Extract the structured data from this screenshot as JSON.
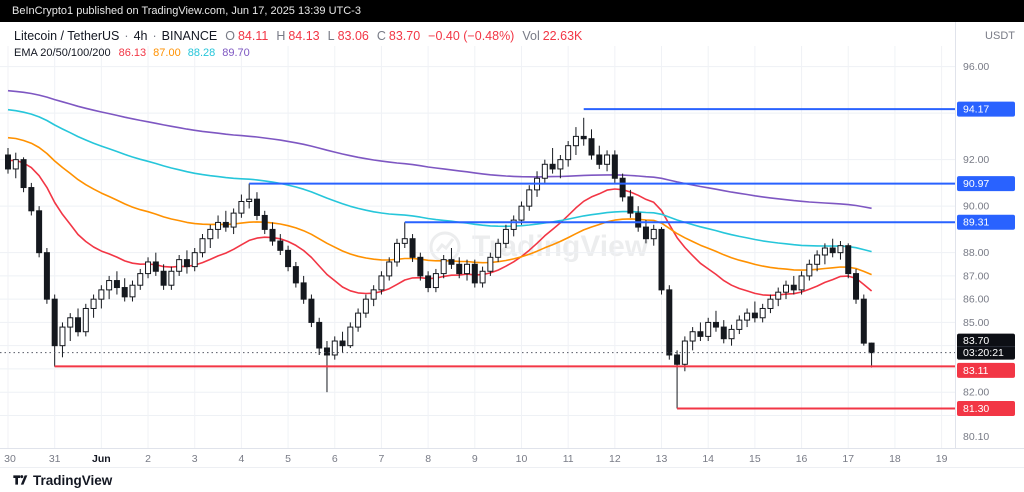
{
  "topbar": {
    "text": "BeInCrypto1 published on TradingView.com, Jun 17, 2025 13:39 UTC-3"
  },
  "header": {
    "symbol": "Litecoin / TetherUS",
    "sep": "·",
    "interval": "4h",
    "exchange": "BINANCE",
    "ohlc": {
      "o_label": "O",
      "o": "84.11",
      "h_label": "H",
      "h": "84.13",
      "l_label": "L",
      "l": "83.06",
      "c_label": "C",
      "c": "83.70",
      "change": "−0.40 (−0.48%)",
      "vol_label": "Vol",
      "vol": "22.63K"
    },
    "ema_label": "EMA 20/50/100/200",
    "quote_currency": "USDT"
  },
  "colors": {
    "down": "#f23645",
    "up": "#089981",
    "line_blue": "#2962ff",
    "line_red": "#f23645"
  },
  "watermark": {
    "text": "TradingView"
  },
  "footer": {
    "brand": "TradingView"
  },
  "chart_data": {
    "type": "candlestick",
    "title": "Litecoin / TetherUS · 4h · BINANCE",
    "interval": "4h",
    "ylim": [
      79.6,
      96.5
    ],
    "grid": true,
    "legend_position": "top-left",
    "price_axis_labels": [
      {
        "label": "96.00",
        "price": 96
      },
      {
        "label": "92.00",
        "price": 92
      },
      {
        "label": "90.00",
        "price": 90
      },
      {
        "label": "88.00",
        "price": 88
      },
      {
        "label": "87.00",
        "price": 87
      },
      {
        "label": "86.00",
        "price": 86
      },
      {
        "label": "85.00",
        "price": 85
      },
      {
        "label": "82.00",
        "price": 82
      },
      {
        "label": "80.10",
        "price": 80.1
      }
    ],
    "grid_prices": [
      96,
      94,
      92,
      90,
      88,
      87,
      86,
      85,
      84,
      83,
      82,
      81
    ],
    "time_axis": [
      {
        "label": "30",
        "i": 0
      },
      {
        "label": "31",
        "i": 6
      },
      {
        "label": "Jun",
        "i": 12,
        "major": true
      },
      {
        "label": "2",
        "i": 18
      },
      {
        "label": "3",
        "i": 24
      },
      {
        "label": "4",
        "i": 30
      },
      {
        "label": "5",
        "i": 36
      },
      {
        "label": "6",
        "i": 42
      },
      {
        "label": "7",
        "i": 48
      },
      {
        "label": "8",
        "i": 54
      },
      {
        "label": "9",
        "i": 60
      },
      {
        "label": "10",
        "i": 66
      },
      {
        "label": "11",
        "i": 72
      },
      {
        "label": "12",
        "i": 78
      },
      {
        "label": "13",
        "i": 84
      },
      {
        "label": "14",
        "i": 90
      },
      {
        "label": "15",
        "i": 96
      },
      {
        "label": "16",
        "i": 102
      },
      {
        "label": "17",
        "i": 108
      },
      {
        "label": "18",
        "i": 114
      },
      {
        "label": "19",
        "i": 120
      }
    ],
    "candles": [
      [
        92.2,
        92.5,
        91.4,
        91.6
      ],
      [
        91.6,
        92.3,
        91.2,
        92.0
      ],
      [
        92.0,
        92.1,
        90.6,
        90.8
      ],
      [
        90.8,
        91.0,
        89.6,
        89.8
      ],
      [
        89.8,
        90.0,
        87.8,
        88.0
      ],
      [
        88.0,
        88.2,
        85.8,
        86.0
      ],
      [
        86.0,
        86.2,
        83.1,
        84.0
      ],
      [
        84.0,
        85.0,
        83.5,
        84.8
      ],
      [
        84.8,
        85.4,
        84.2,
        85.2
      ],
      [
        85.2,
        85.6,
        84.4,
        84.6
      ],
      [
        84.6,
        85.8,
        84.4,
        85.6
      ],
      [
        85.6,
        86.2,
        85.2,
        86.0
      ],
      [
        86.0,
        86.6,
        85.6,
        86.4
      ],
      [
        86.4,
        87.0,
        86.0,
        86.8
      ],
      [
        86.8,
        87.2,
        86.2,
        86.5
      ],
      [
        86.5,
        86.9,
        85.9,
        86.1
      ],
      [
        86.1,
        86.8,
        85.9,
        86.6
      ],
      [
        86.6,
        87.3,
        86.4,
        87.1
      ],
      [
        87.1,
        87.8,
        86.9,
        87.6
      ],
      [
        87.6,
        88.0,
        87.0,
        87.2
      ],
      [
        87.2,
        87.5,
        86.4,
        86.6
      ],
      [
        86.6,
        87.4,
        86.4,
        87.2
      ],
      [
        87.2,
        87.9,
        87.0,
        87.7
      ],
      [
        87.7,
        88.1,
        87.1,
        87.4
      ],
      [
        87.4,
        88.2,
        87.2,
        88.0
      ],
      [
        88.0,
        88.8,
        87.8,
        88.6
      ],
      [
        88.6,
        89.2,
        88.2,
        89.0
      ],
      [
        89.0,
        89.6,
        88.6,
        89.3
      ],
      [
        89.3,
        89.8,
        88.9,
        89.1
      ],
      [
        89.1,
        89.9,
        88.8,
        89.7
      ],
      [
        89.7,
        90.5,
        89.5,
        90.2
      ],
      [
        90.2,
        90.97,
        89.9,
        90.3
      ],
      [
        90.3,
        90.6,
        89.4,
        89.6
      ],
      [
        89.6,
        89.8,
        88.8,
        89.0
      ],
      [
        89.0,
        89.3,
        88.3,
        88.5
      ],
      [
        88.5,
        88.8,
        87.9,
        88.1
      ],
      [
        88.1,
        88.3,
        87.2,
        87.4
      ],
      [
        87.4,
        87.6,
        86.5,
        86.7
      ],
      [
        86.7,
        87.0,
        85.8,
        86.0
      ],
      [
        86.0,
        86.2,
        84.8,
        85.0
      ],
      [
        85.0,
        85.2,
        83.6,
        83.9
      ],
      [
        83.9,
        84.2,
        82.0,
        83.6
      ],
      [
        83.6,
        84.4,
        83.4,
        84.2
      ],
      [
        84.2,
        84.6,
        83.7,
        84.0
      ],
      [
        84.0,
        85.0,
        83.9,
        84.8
      ],
      [
        84.8,
        85.6,
        84.6,
        85.4
      ],
      [
        85.4,
        86.2,
        85.2,
        86.0
      ],
      [
        86.0,
        86.6,
        85.7,
        86.4
      ],
      [
        86.4,
        87.2,
        86.2,
        87.0
      ],
      [
        87.0,
        87.8,
        86.8,
        87.6
      ],
      [
        87.6,
        88.6,
        87.4,
        88.4
      ],
      [
        88.4,
        89.31,
        88.2,
        88.6
      ],
      [
        88.6,
        88.8,
        87.6,
        87.8
      ],
      [
        87.8,
        88.0,
        86.8,
        87.0
      ],
      [
        87.0,
        87.2,
        86.3,
        86.5
      ],
      [
        86.5,
        87.3,
        86.3,
        87.1
      ],
      [
        87.1,
        87.9,
        86.9,
        87.7
      ],
      [
        87.7,
        88.2,
        87.3,
        87.5
      ],
      [
        87.5,
        87.8,
        86.9,
        87.1
      ],
      [
        87.1,
        87.7,
        86.8,
        87.5
      ],
      [
        87.5,
        87.7,
        86.5,
        86.7
      ],
      [
        86.7,
        87.4,
        86.5,
        87.2
      ],
      [
        87.2,
        88.0,
        87.0,
        87.8
      ],
      [
        87.8,
        88.6,
        87.6,
        88.4
      ],
      [
        88.4,
        89.2,
        88.2,
        89.0
      ],
      [
        89.0,
        89.6,
        88.7,
        89.4
      ],
      [
        89.4,
        90.2,
        89.2,
        90.0
      ],
      [
        90.0,
        90.9,
        89.8,
        90.7
      ],
      [
        90.7,
        91.5,
        90.4,
        91.2
      ],
      [
        91.2,
        92.0,
        91.0,
        91.8
      ],
      [
        91.8,
        92.5,
        91.4,
        91.6
      ],
      [
        91.6,
        92.2,
        91.2,
        92.0
      ],
      [
        92.0,
        92.8,
        91.7,
        92.6
      ],
      [
        92.6,
        93.4,
        92.2,
        93.0
      ],
      [
        93.0,
        93.8,
        92.6,
        92.9
      ],
      [
        92.9,
        93.3,
        92.0,
        92.2
      ],
      [
        92.2,
        92.6,
        91.6,
        91.8
      ],
      [
        91.8,
        92.4,
        91.5,
        92.2
      ],
      [
        92.2,
        92.4,
        91.0,
        91.2
      ],
      [
        91.2,
        91.4,
        90.2,
        90.4
      ],
      [
        90.4,
        90.7,
        89.5,
        89.7
      ],
      [
        89.7,
        90.0,
        88.9,
        89.1
      ],
      [
        89.1,
        89.4,
        88.4,
        88.6
      ],
      [
        88.6,
        89.2,
        88.3,
        89.0
      ],
      [
        89.0,
        89.1,
        86.2,
        86.4
      ],
      [
        86.4,
        86.6,
        83.4,
        83.6
      ],
      [
        83.6,
        83.8,
        81.3,
        83.2
      ],
      [
        83.2,
        84.4,
        82.9,
        84.2
      ],
      [
        84.2,
        84.8,
        83.8,
        84.6
      ],
      [
        84.6,
        85.0,
        84.2,
        84.4
      ],
      [
        84.4,
        85.2,
        84.2,
        85.0
      ],
      [
        85.0,
        85.5,
        84.6,
        84.8
      ],
      [
        84.8,
        85.1,
        84.1,
        84.3
      ],
      [
        84.3,
        84.9,
        84.0,
        84.7
      ],
      [
        84.7,
        85.3,
        84.5,
        85.1
      ],
      [
        85.1,
        85.6,
        84.8,
        85.4
      ],
      [
        85.4,
        85.9,
        85.0,
        85.2
      ],
      [
        85.2,
        85.8,
        85.0,
        85.6
      ],
      [
        85.6,
        86.2,
        85.4,
        86.0
      ],
      [
        86.0,
        86.5,
        85.7,
        86.3
      ],
      [
        86.3,
        86.8,
        86.0,
        86.6
      ],
      [
        86.6,
        87.0,
        86.2,
        86.4
      ],
      [
        86.4,
        87.2,
        86.2,
        87.0
      ],
      [
        87.0,
        87.7,
        86.8,
        87.5
      ],
      [
        87.5,
        88.1,
        87.2,
        87.9
      ],
      [
        87.9,
        88.4,
        87.5,
        88.2
      ],
      [
        88.2,
        88.6,
        87.8,
        88.0
      ],
      [
        88.0,
        88.5,
        87.7,
        88.3
      ],
      [
        88.3,
        88.4,
        86.9,
        87.1
      ],
      [
        87.1,
        87.3,
        85.8,
        86.0
      ],
      [
        86.0,
        86.2,
        84.0,
        84.11
      ],
      [
        84.11,
        84.13,
        83.06,
        83.7
      ]
    ],
    "emas": [
      {
        "period": 20,
        "seed": 92.0,
        "color": "#f23645",
        "value_label": "86.13"
      },
      {
        "period": 50,
        "seed": 93.0,
        "color": "#ff9100",
        "value_label": "87.00"
      },
      {
        "period": 100,
        "seed": 94.2,
        "color": "#26c6da",
        "value_label": "88.28"
      },
      {
        "period": 200,
        "seed": 95.0,
        "color": "#7e57c2",
        "value_label": "89.70"
      }
    ],
    "price_lines": [
      {
        "label": "94.17",
        "price": 94.17,
        "from_index": 74,
        "color": "#2962ff"
      },
      {
        "label": "90.97",
        "price": 90.97,
        "from_index": 31,
        "color": "#2962ff"
      },
      {
        "label": "89.31",
        "price": 89.31,
        "from_index": 51,
        "color": "#2962ff"
      },
      {
        "label": "83.11",
        "price": 83.11,
        "from_index": 6,
        "color": "#f23645"
      },
      {
        "label": "81.30",
        "price": 81.3,
        "from_index": 86,
        "color": "#f23645"
      }
    ],
    "current_price": {
      "value": 83.7,
      "label": "83.70",
      "countdown": "03:20:21"
    },
    "candle_style": {
      "up_fill": "#ffffff",
      "down_fill": "#15181e",
      "outline": "#15181e"
    }
  }
}
